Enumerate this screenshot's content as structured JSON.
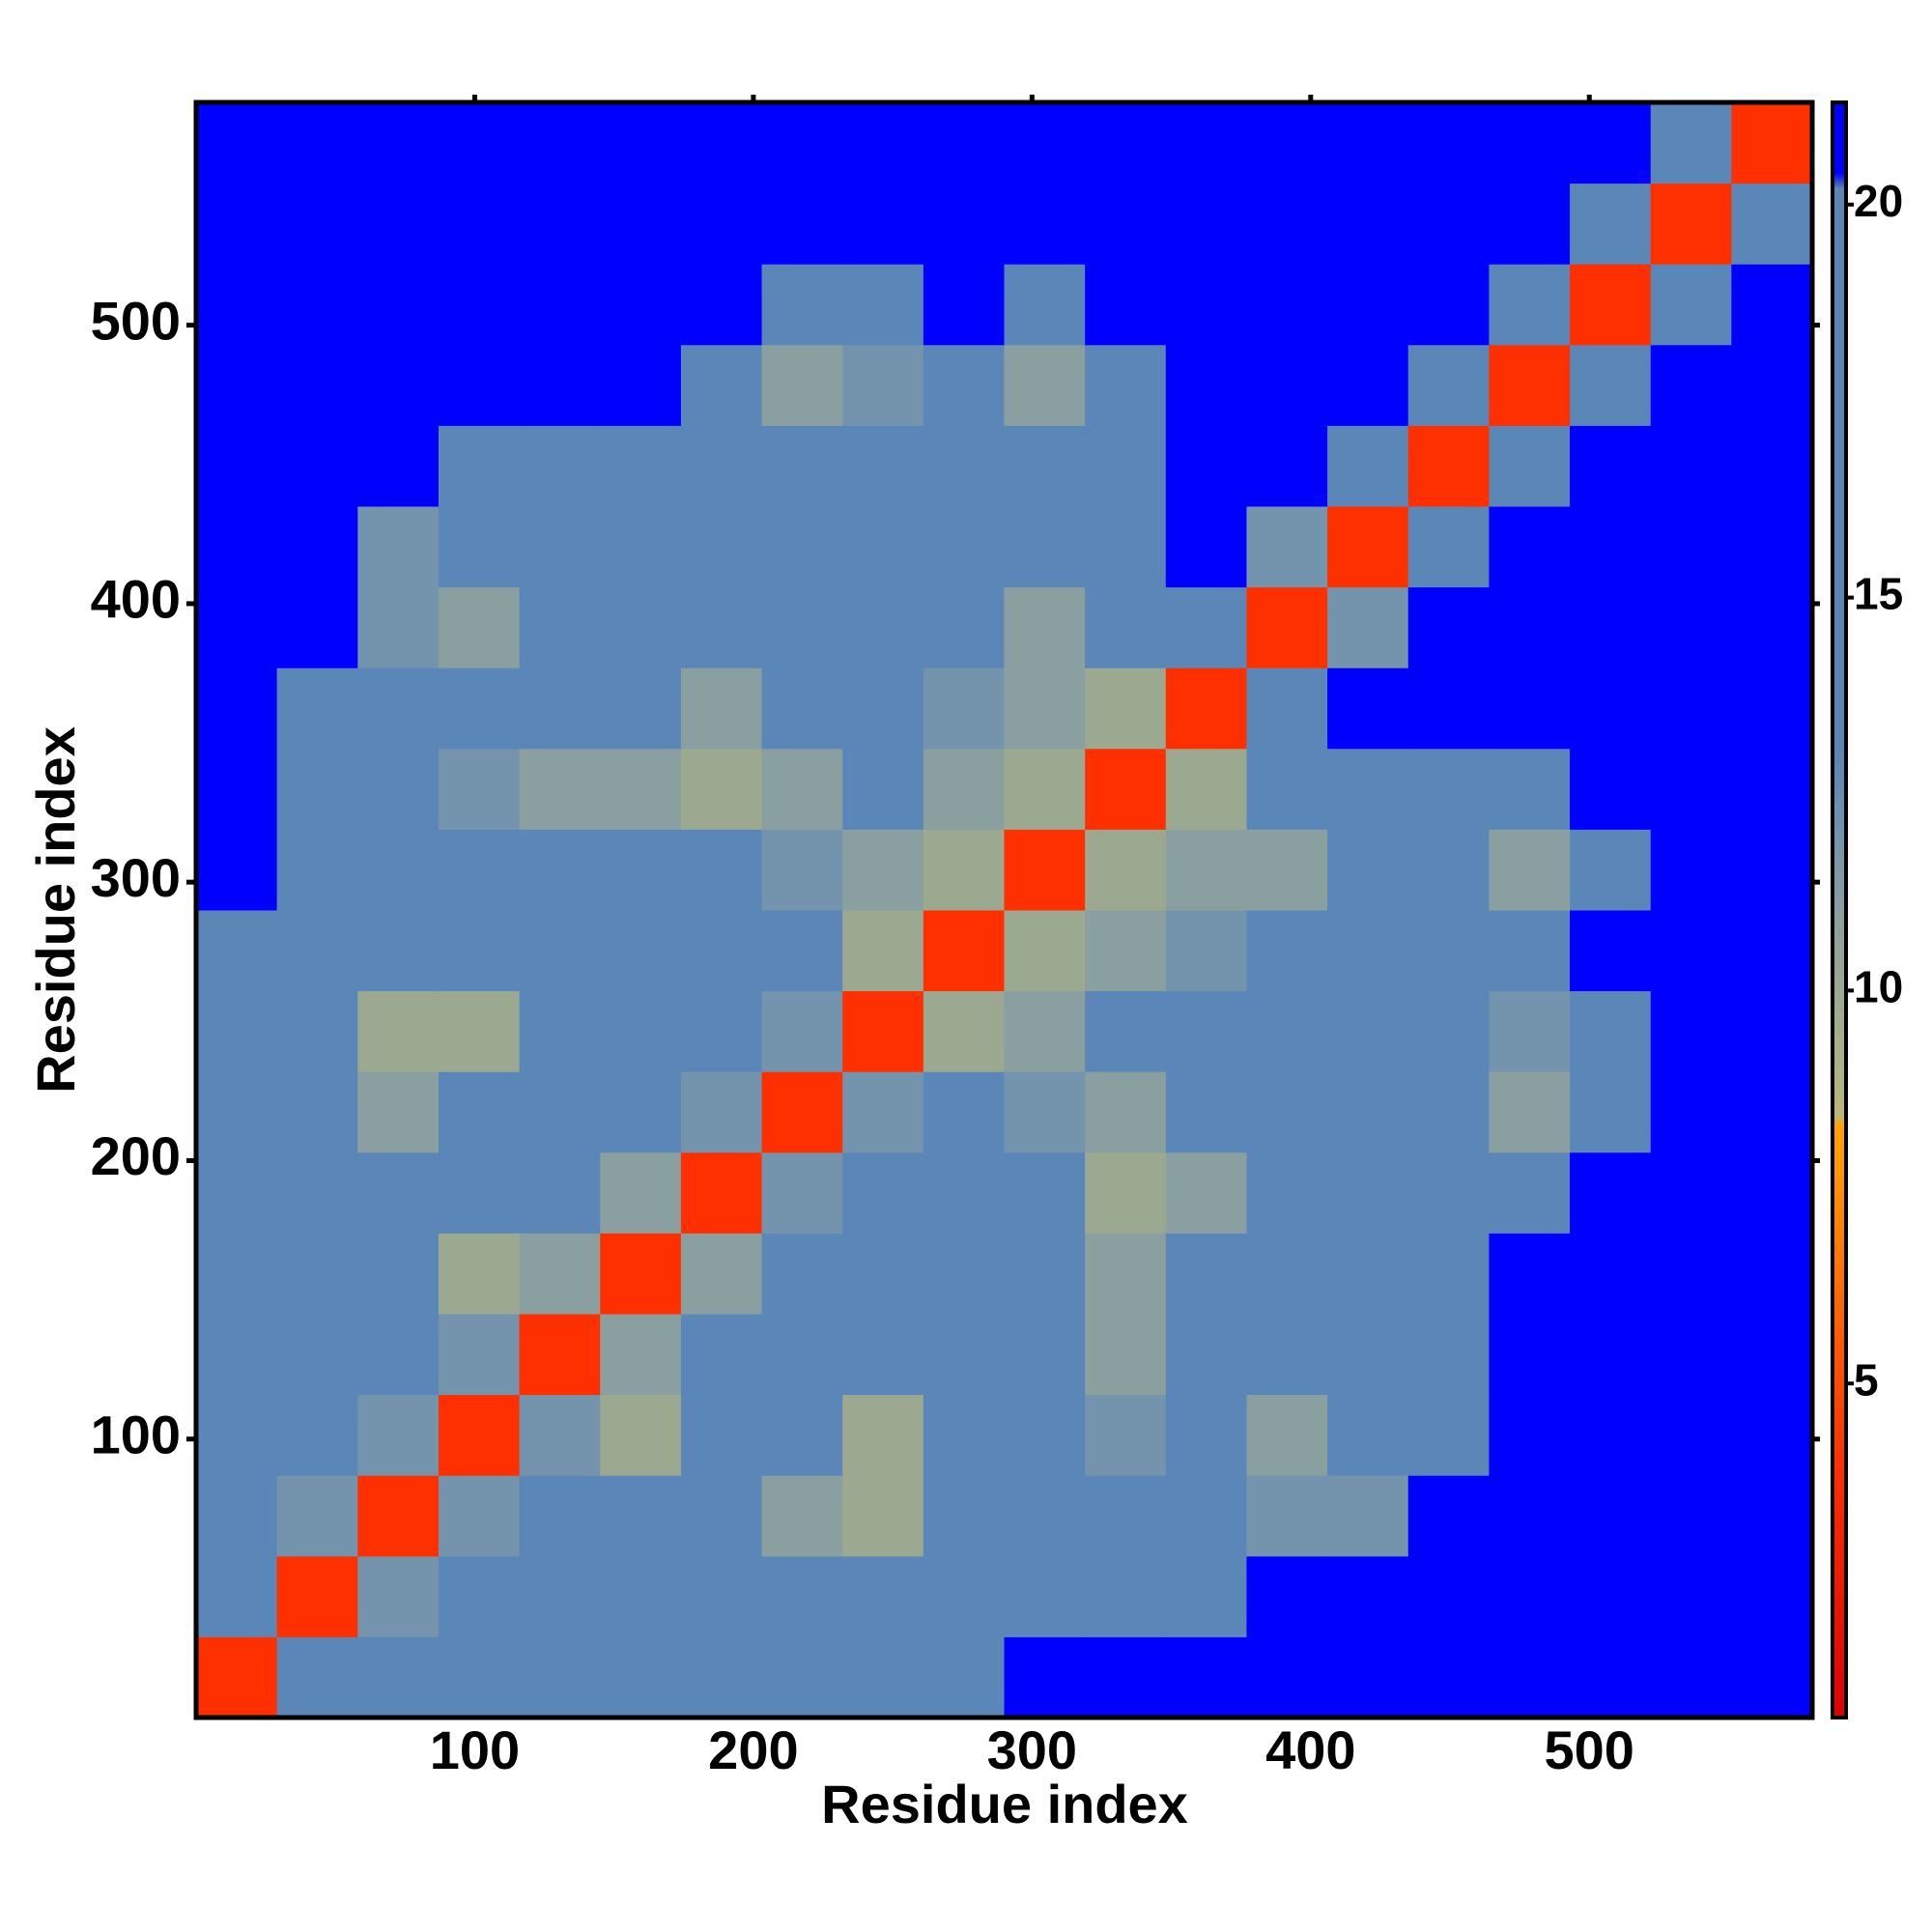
{
  "chart_data": {
    "type": "heatmap",
    "xlabel": "Residue index",
    "ylabel": "Residue index",
    "bins": [
      0,
      29,
      58,
      87,
      116,
      145,
      174,
      203,
      232,
      261,
      290,
      319,
      348,
      377,
      406,
      435,
      464,
      493,
      522,
      551,
      580
    ],
    "xlim": [
      0,
      580
    ],
    "ylim": [
      0,
      580
    ],
    "xticks": [
      100,
      200,
      300,
      400,
      500
    ],
    "yticks": [
      100,
      200,
      300,
      400,
      500
    ],
    "clim": [
      0.75,
      21.3
    ],
    "cticks": [
      5,
      10,
      15,
      20
    ],
    "color_stops": [
      {
        "value": 0.75,
        "color": "#e00000"
      },
      {
        "value": 4,
        "color": "#ff3000"
      },
      {
        "value": 8.3,
        "color": "#ffa500"
      },
      {
        "value": 8.4,
        "color": "#b8b878"
      },
      {
        "value": 11,
        "color": "#8aa0a0"
      },
      {
        "value": 13,
        "color": "#5b87b8"
      },
      {
        "value": 20.2,
        "color": "#5b87b8"
      },
      {
        "value": 20.4,
        "color": "#0000ff"
      },
      {
        "value": 21.3,
        "color": "#0000ff"
      }
    ],
    "values": [
      [
        4,
        14,
        16,
        19,
        19,
        20,
        20,
        19,
        19,
        20,
        21,
        21,
        21,
        21,
        21,
        21,
        21,
        21,
        21,
        21
      ],
      [
        14,
        4,
        12,
        15,
        16,
        16,
        17,
        16,
        15,
        16,
        18,
        19,
        20,
        21,
        21,
        21,
        21,
        21,
        21,
        21
      ],
      [
        16,
        12,
        4,
        12,
        15,
        15,
        16,
        11,
        10,
        15,
        16,
        15,
        18,
        12,
        12,
        21,
        21,
        21,
        21,
        21
      ],
      [
        19,
        15,
        12,
        4,
        12,
        10,
        15,
        14,
        10,
        15,
        15,
        12,
        15,
        11,
        13,
        19,
        21,
        21,
        21,
        21
      ],
      [
        19,
        16,
        15,
        12,
        4,
        11,
        15,
        15,
        15,
        15,
        13,
        11,
        16,
        15,
        17,
        19,
        21,
        21,
        21,
        21
      ],
      [
        20,
        16,
        15,
        10,
        11,
        4,
        11,
        14,
        15,
        15,
        15,
        11,
        16,
        17,
        18,
        19,
        21,
        21,
        21,
        21
      ],
      [
        20,
        17,
        16,
        15,
        15,
        11,
        4,
        12,
        15,
        15,
        15,
        10,
        11,
        17,
        16,
        18,
        19,
        21,
        21,
        21
      ],
      [
        19,
        16,
        11,
        14,
        15,
        14,
        12,
        4,
        12,
        13,
        12,
        11,
        16,
        14,
        15,
        17,
        11,
        20,
        21,
        21
      ],
      [
        19,
        15,
        10,
        10,
        15,
        15,
        15,
        12,
        4,
        10,
        11,
        14,
        17,
        13,
        14,
        16,
        12,
        20,
        21,
        21
      ],
      [
        20,
        16,
        15,
        15,
        15,
        15,
        15,
        13,
        10,
        4,
        10,
        11,
        12,
        15,
        13,
        15,
        15,
        21,
        21,
        21
      ],
      [
        21,
        18,
        16,
        15,
        13,
        15,
        15,
        12,
        11,
        10,
        4,
        10,
        11,
        11,
        15,
        17,
        11,
        19,
        21,
        21
      ],
      [
        21,
        19,
        15,
        12,
        11,
        11,
        10,
        11,
        14,
        11,
        10,
        4,
        10,
        19,
        20,
        20,
        19,
        21,
        21,
        21
      ],
      [
        21,
        20,
        18,
        15,
        16,
        16,
        11,
        16,
        17,
        12,
        11,
        10,
        4,
        15,
        21,
        21,
        21,
        21,
        21,
        21
      ],
      [
        21,
        21,
        12,
        11,
        15,
        17,
        17,
        14,
        13,
        15,
        11,
        19,
        15,
        4,
        12,
        21,
        21,
        21,
        21,
        21
      ],
      [
        21,
        21,
        12,
        13,
        17,
        18,
        16,
        15,
        14,
        13,
        15,
        20,
        21,
        12,
        4,
        14,
        21,
        21,
        21,
        21
      ],
      [
        21,
        21,
        21,
        19,
        19,
        19,
        18,
        17,
        16,
        15,
        17,
        20,
        21,
        21,
        14,
        4,
        14,
        21,
        21,
        21
      ],
      [
        21,
        21,
        21,
        21,
        21,
        21,
        19,
        11,
        12,
        15,
        11,
        19,
        21,
        21,
        21,
        14,
        4,
        13,
        21,
        21
      ],
      [
        21,
        21,
        21,
        21,
        21,
        21,
        21,
        20,
        20,
        21,
        19,
        21,
        21,
        21,
        21,
        21,
        13,
        4,
        18,
        21
      ],
      [
        21,
        21,
        21,
        21,
        21,
        21,
        21,
        21,
        21,
        21,
        21,
        21,
        21,
        21,
        21,
        21,
        21,
        18,
        4,
        18
      ],
      [
        21,
        21,
        21,
        21,
        21,
        21,
        21,
        21,
        21,
        21,
        21,
        21,
        21,
        21,
        21,
        21,
        21,
        21,
        18,
        4
      ]
    ]
  }
}
